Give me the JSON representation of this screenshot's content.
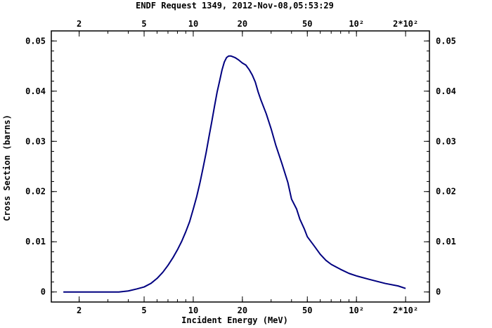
{
  "chart_data": {
    "type": "line",
    "title": "ENDF Request 1349, 2012-Nov-08,05:53:29",
    "xlabel": "Incident Energy (MeV)",
    "ylabel": "Cross Section (barns)",
    "xscale": "log",
    "xlim": [
      1.35,
      280
    ],
    "ylim": [
      -0.002,
      0.052
    ],
    "grid": false,
    "x_ticks": [
      {
        "value": 2,
        "label": "2"
      },
      {
        "value": 5,
        "label": "5"
      },
      {
        "value": 10,
        "label": "10"
      },
      {
        "value": 20,
        "label": "20"
      },
      {
        "value": 50,
        "label": "50"
      },
      {
        "value": 100,
        "label": "10²"
      },
      {
        "value": 200,
        "label": "2*10²"
      }
    ],
    "y_ticks": [
      {
        "value": 0,
        "label": "0"
      },
      {
        "value": 0.01,
        "label": "0.01"
      },
      {
        "value": 0.02,
        "label": "0.02"
      },
      {
        "value": 0.03,
        "label": "0.03"
      },
      {
        "value": 0.04,
        "label": "0.04"
      },
      {
        "value": 0.05,
        "label": "0.05"
      }
    ],
    "line_color": "#000080",
    "series": [
      {
        "x": [
          1.6,
          2.0,
          2.5,
          3.0,
          3.5,
          4.0,
          4.5,
          5.0,
          5.5,
          6.0,
          6.5,
          7.0,
          7.5,
          8.0,
          8.5,
          9.0,
          9.5,
          10.0,
          10.5,
          11.0,
          11.5,
          12.0,
          12.5,
          13.0,
          13.5,
          14.0,
          14.5,
          15.0,
          15.5,
          16.0,
          16.5,
          17.0,
          18.0,
          19.0,
          20.0,
          21.0,
          22.0,
          23.0,
          24.0,
          25.0,
          26.0,
          28.0,
          30.0,
          32.0,
          35.0,
          38.0,
          40.0,
          43.0,
          45.0,
          48.0,
          50.0,
          55.0,
          60.0,
          65.0,
          70.0,
          80.0,
          90.0,
          100.0,
          120.0,
          150.0,
          180.0,
          200.0
        ],
        "y": [
          0.0,
          0.0,
          0.0,
          0.0,
          0.0,
          0.0002,
          0.0006,
          0.001,
          0.0017,
          0.0027,
          0.0039,
          0.0053,
          0.0068,
          0.0084,
          0.0101,
          0.012,
          0.014,
          0.0165,
          0.019,
          0.0218,
          0.0248,
          0.0278,
          0.031,
          0.034,
          0.037,
          0.0398,
          0.042,
          0.0442,
          0.0458,
          0.0467,
          0.047,
          0.047,
          0.0467,
          0.0462,
          0.0456,
          0.0452,
          0.0443,
          0.0432,
          0.0418,
          0.0398,
          0.0382,
          0.0355,
          0.0325,
          0.0293,
          0.0255,
          0.0218,
          0.0185,
          0.0165,
          0.0145,
          0.0125,
          0.011,
          0.0092,
          0.0075,
          0.0063,
          0.0055,
          0.0045,
          0.0037,
          0.0032,
          0.0025,
          0.0017,
          0.0012,
          0.0007
        ]
      }
    ]
  }
}
